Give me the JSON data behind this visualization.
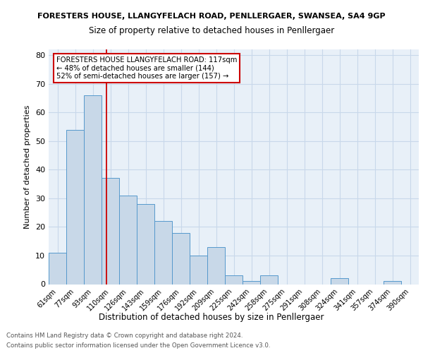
{
  "title1": "FORESTERS HOUSE, LLANGYFELACH ROAD, PENLLERGAER, SWANSEA, SA4 9GP",
  "title2": "Size of property relative to detached houses in Penllergaer",
  "xlabel": "Distribution of detached houses by size in Penllergaer",
  "ylabel": "Number of detached properties",
  "footer1": "Contains HM Land Registry data © Crown copyright and database right 2024.",
  "footer2": "Contains public sector information licensed under the Open Government Licence v3.0.",
  "categories": [
    "61sqm",
    "77sqm",
    "93sqm",
    "110sqm",
    "126sqm",
    "143sqm",
    "159sqm",
    "176sqm",
    "192sqm",
    "209sqm",
    "225sqm",
    "242sqm",
    "258sqm",
    "275sqm",
    "291sqm",
    "308sqm",
    "324sqm",
    "341sqm",
    "357sqm",
    "374sqm",
    "390sqm"
  ],
  "values": [
    11,
    54,
    66,
    37,
    31,
    28,
    22,
    18,
    10,
    13,
    3,
    1,
    3,
    0,
    0,
    0,
    2,
    0,
    0,
    1,
    0
  ],
  "bar_color": "#c8d8e8",
  "bar_edge_color": "#5599cc",
  "vline_x": 2.76,
  "vline_color": "#cc0000",
  "annotation_title": "FORESTERS HOUSE LLANGYFELACH ROAD: 117sqm",
  "annotation_line1": "← 48% of detached houses are smaller (144)",
  "annotation_line2": "52% of semi-detached houses are larger (157) →",
  "annotation_box_color": "#ffffff",
  "annotation_border_color": "#cc0000",
  "ylim": [
    0,
    82
  ],
  "yticks": [
    0,
    10,
    20,
    30,
    40,
    50,
    60,
    70,
    80
  ],
  "grid_color": "#c8d8ea",
  "background_color": "#e8f0f8"
}
